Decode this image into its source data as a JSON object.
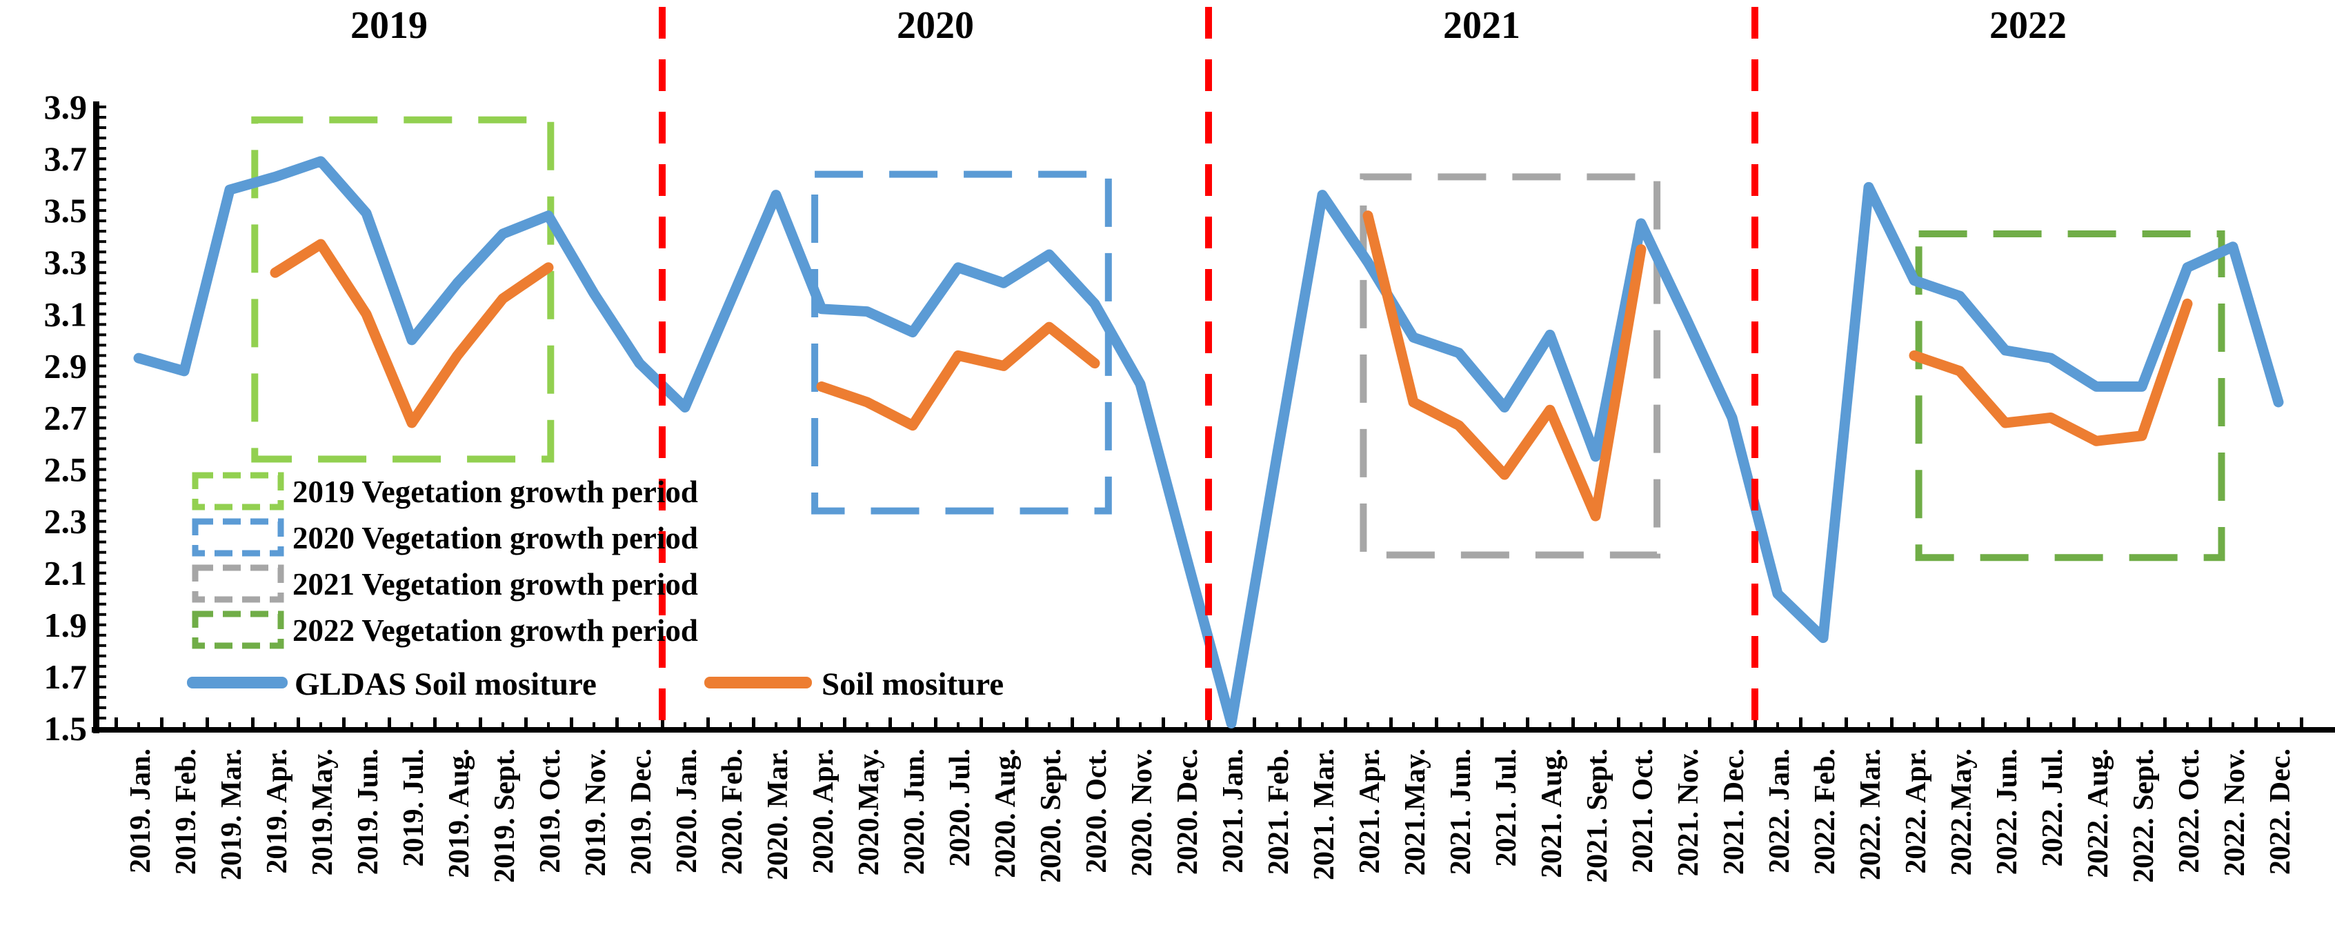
{
  "chart_data": {
    "type": "line",
    "title": "",
    "xlabel": "",
    "ylabel": "",
    "grid": false,
    "legend_position": "inside-left",
    "ylim": [
      1.5,
      3.9
    ],
    "y_major_step": 0.2,
    "y_minor_step": 0.04,
    "x": [
      "2019. Jan.",
      "2019. Feb.",
      "2019. Mar.",
      "2019. Apr.",
      "2019.May.",
      "2019. Jun.",
      "2019. Jul.",
      "2019. Aug.",
      "2019. Sept.",
      "2019. Oct.",
      "2019. Nov.",
      "2019. Dec.",
      "2020. Jan.",
      "2020. Feb.",
      "2020. Mar.",
      "2020. Apr.",
      "2020.May.",
      "2020. Jun.",
      "2020. Jul.",
      "2020. Aug.",
      "2020. Sept.",
      "2020. Oct.",
      "2020. Nov.",
      "2020. Dec.",
      "2021. Jan.",
      "2021. Feb.",
      "2021. Mar.",
      "2021. Apr.",
      "2021.May.",
      "2021. Jun.",
      "2021. Jul.",
      "2021. Aug.",
      "2021. Sept.",
      "2021. Oct.",
      "2021. Nov.",
      "2021. Dec.",
      "2022. Jan.",
      "2022. Feb.",
      "2022. Mar.",
      "2022. Apr.",
      "2022.May.",
      "2022. Jun.",
      "2022. Jul.",
      "2022. Aug.",
      "2022. Sept.",
      "2022. Oct.",
      "2022. Nov.",
      "2022. Dec."
    ],
    "series": [
      {
        "name": "GLDAS  Soil mositure",
        "color": "#5B9BD5",
        "values": [
          2.93,
          2.88,
          3.58,
          3.63,
          3.69,
          3.49,
          3.0,
          3.22,
          3.41,
          3.48,
          3.18,
          2.91,
          2.74,
          3.15,
          3.56,
          3.12,
          3.11,
          3.03,
          3.28,
          3.22,
          3.33,
          3.14,
          2.83,
          2.17,
          1.52,
          2.55,
          3.56,
          3.3,
          3.01,
          2.95,
          2.74,
          3.02,
          2.55,
          3.45,
          3.08,
          2.7,
          2.02,
          1.85,
          3.59,
          3.23,
          3.17,
          2.96,
          2.93,
          2.82,
          2.82,
          3.28,
          3.36,
          2.76
        ]
      },
      {
        "name": "Soil mositure",
        "color": "#ED7D31",
        "values": [
          null,
          null,
          null,
          3.26,
          3.37,
          3.1,
          2.68,
          2.94,
          3.16,
          3.28,
          null,
          null,
          null,
          null,
          null,
          2.82,
          2.76,
          2.67,
          2.94,
          2.9,
          3.05,
          2.91,
          null,
          null,
          null,
          null,
          null,
          3.48,
          2.76,
          2.67,
          2.48,
          2.73,
          2.32,
          3.35,
          null,
          null,
          null,
          null,
          null,
          2.94,
          2.88,
          2.68,
          2.7,
          2.61,
          2.63,
          3.14,
          null,
          null
        ]
      }
    ],
    "growth_boxes": [
      {
        "label": "2019 Vegetation growth period",
        "color": "#92D050",
        "months": "Apr.-Oct. 2019",
        "x0": 2.55,
        "x1": 9.05,
        "y0": 2.54,
        "y1": 3.85
      },
      {
        "label": "2020 Vegetation growth period",
        "color": "#5B9BD5",
        "months": "Apr.-Oct. 2020",
        "x0": 14.85,
        "x1": 21.3,
        "y0": 2.34,
        "y1": 3.64
      },
      {
        "label": "2021 Vegetation growth period",
        "color": "#A6A6A6",
        "months": "Apr.-Oct. 2021",
        "x0": 26.9,
        "x1": 33.35,
        "y0": 2.17,
        "y1": 3.63
      },
      {
        "label": "2022 Vegetation growth period",
        "color": "#70AD47",
        "months": "Apr.-Oct. 2022",
        "x0": 39.1,
        "x1": 45.75,
        "y0": 2.16,
        "y1": 3.41
      }
    ],
    "year_labels": [
      {
        "text": "2019",
        "center_month_index": 5.5
      },
      {
        "text": "2020",
        "center_month_index": 17.5
      },
      {
        "text": "2021",
        "center_month_index": 29.5
      },
      {
        "text": "2022",
        "center_month_index": 41.5
      }
    ],
    "year_separators_month_index": [
      11.5,
      23.5,
      35.5
    ],
    "separator_color": "#FF0000",
    "axis_color": "#000000"
  }
}
